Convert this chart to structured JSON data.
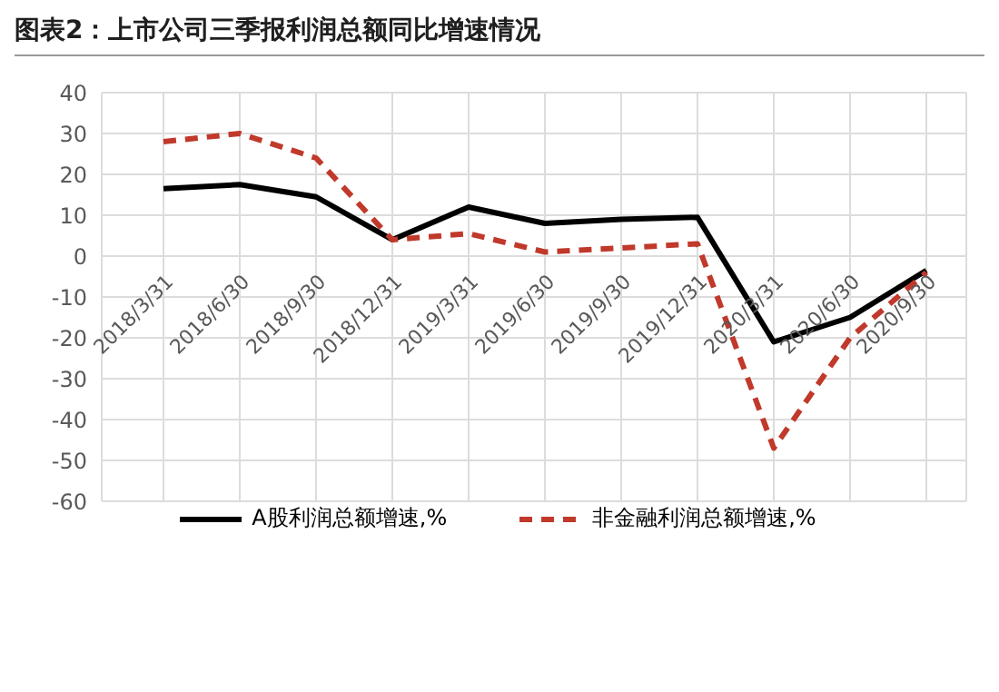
{
  "chart_data": {
    "type": "line",
    "title": "图表2：上市公司三季报利润总额同比增速情况",
    "categories": [
      "2018/3/31",
      "2018/6/30",
      "2018/9/30",
      "2018/12/31",
      "2019/3/31",
      "2019/6/30",
      "2019/9/30",
      "2019/12/31",
      "2020/3/31",
      "2020/6/30",
      "2020/9/30"
    ],
    "series": [
      {
        "name": "A股利润总额增速,%",
        "color": "#000000",
        "line_style": "solid",
        "values": [
          16.5,
          17.5,
          14.5,
          4,
          12,
          8,
          9,
          9.5,
          -21,
          -15,
          -3.5
        ]
      },
      {
        "name": "非金融利润总额增速,%",
        "color": "#c0392b",
        "line_style": "dashed",
        "values": [
          28,
          30,
          24,
          4,
          5.5,
          1,
          2,
          3,
          -47,
          -20,
          -4
        ]
      }
    ],
    "ylim": [
      -60,
      40
    ],
    "yticks": [
      -60,
      -50,
      -40,
      -30,
      -20,
      -10,
      0,
      10,
      20,
      30,
      40
    ],
    "grid": true,
    "legend": "bottom",
    "marker": "none"
  }
}
